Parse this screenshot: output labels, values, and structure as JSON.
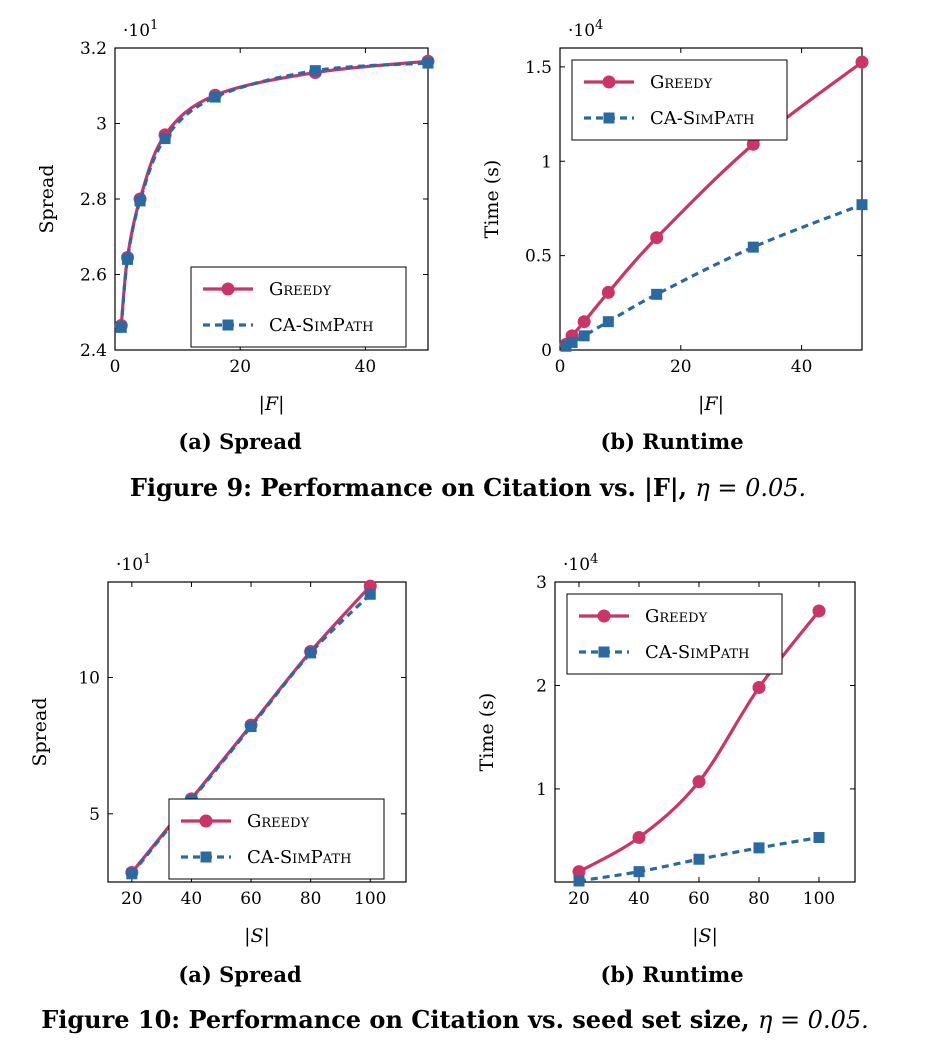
{
  "colors": {
    "greedy": "#cc3366",
    "ca_simpath": "#2a6aa3"
  },
  "legend": {
    "greedy": "Greedy",
    "ca_simpath": "CA-SimPath"
  },
  "figures": [
    {
      "caption_text": "Figure 9: Performance on Citation vs. |F|,",
      "caption_eta": "η = 0.05."
    },
    {
      "caption_text": "Figure 10: Performance on Citation vs. seed set size,",
      "caption_eta": "η = 0.05."
    }
  ],
  "chart_data": [
    {
      "type": "line",
      "subcaption": "(a) Spread",
      "xlabel": "|F|",
      "ylabel": "Spread",
      "multiplier": "·10",
      "multiplier_exp": "1",
      "xlim": [
        0,
        50
      ],
      "ylim": [
        2.4,
        3.2
      ],
      "xticks": [
        0,
        20,
        40
      ],
      "xtick_labels": [
        "0",
        "20",
        "40"
      ],
      "yticks": [
        2.4,
        2.6,
        2.8,
        3.0,
        3.2
      ],
      "ytick_labels": [
        "2.4",
        "2.6",
        "2.8",
        "3",
        "3.2"
      ],
      "legend_position": "bottom-right",
      "series": [
        {
          "name": "Greedy",
          "x": [
            1,
            2,
            4,
            8,
            16,
            32,
            50
          ],
          "y": [
            2.465,
            2.645,
            2.8,
            2.97,
            3.075,
            3.135,
            3.165
          ]
        },
        {
          "name": "CA-SimPath",
          "x": [
            1,
            2,
            4,
            8,
            16,
            32,
            50
          ],
          "y": [
            2.46,
            2.64,
            2.795,
            2.96,
            3.07,
            3.14,
            3.16
          ]
        }
      ]
    },
    {
      "type": "line",
      "subcaption": "(b) Runtime",
      "xlabel": "|F|",
      "ylabel": "Time (s)",
      "multiplier": "·10",
      "multiplier_exp": "4",
      "xlim": [
        0,
        50
      ],
      "ylim": [
        0,
        16000
      ],
      "xticks": [
        0,
        20,
        40
      ],
      "xtick_labels": [
        "0",
        "20",
        "40"
      ],
      "yticks": [
        0,
        5000,
        10000,
        15000
      ],
      "ytick_labels": [
        "0",
        "0.5",
        "1",
        "1.5"
      ],
      "legend_position": "top-left",
      "series": [
        {
          "name": "Greedy",
          "x": [
            1,
            2,
            4,
            8,
            16,
            32,
            50
          ],
          "y": [
            300,
            750,
            1500,
            3050,
            5950,
            10900,
            15250
          ]
        },
        {
          "name": "CA-SimPath",
          "x": [
            1,
            2,
            4,
            8,
            16,
            32,
            50
          ],
          "y": [
            200,
            400,
            750,
            1500,
            2950,
            5450,
            7700
          ]
        }
      ]
    },
    {
      "type": "line",
      "subcaption": "(a) Spread",
      "xlabel": "|S|",
      "ylabel": "Spread",
      "multiplier": "·10",
      "multiplier_exp": "1",
      "xlim": [
        12,
        112
      ],
      "ylim": [
        2.5,
        13.5
      ],
      "xticks": [
        20,
        40,
        60,
        80,
        100
      ],
      "xtick_labels": [
        "20",
        "40",
        "60",
        "80",
        "100"
      ],
      "yticks": [
        5,
        10
      ],
      "ytick_labels": [
        "5",
        "10"
      ],
      "legend_position": "bottom-right",
      "series": [
        {
          "name": "Greedy",
          "x": [
            20,
            40,
            60,
            80,
            100
          ],
          "y": [
            2.85,
            5.55,
            8.25,
            10.95,
            13.35
          ]
        },
        {
          "name": "CA-SimPath",
          "x": [
            20,
            40,
            60,
            80,
            100
          ],
          "y": [
            2.8,
            5.5,
            8.2,
            10.9,
            13.05
          ]
        }
      ]
    },
    {
      "type": "line",
      "subcaption": "(b) Runtime",
      "xlabel": "|S|",
      "ylabel": "Time (s)",
      "multiplier": "·10",
      "multiplier_exp": "4",
      "xlim": [
        12,
        112
      ],
      "ylim": [
        1000,
        30000
      ],
      "xticks": [
        20,
        40,
        60,
        80,
        100
      ],
      "xtick_labels": [
        "20",
        "40",
        "60",
        "80",
        "100"
      ],
      "yticks": [
        10000,
        20000,
        30000
      ],
      "ytick_labels": [
        "1",
        "2",
        "3"
      ],
      "legend_position": "top-left",
      "series": [
        {
          "name": "Greedy",
          "x": [
            20,
            40,
            60,
            80,
            100
          ],
          "y": [
            2000,
            5300,
            10700,
            19800,
            27200
          ]
        },
        {
          "name": "CA-SimPath",
          "x": [
            20,
            40,
            60,
            80,
            100
          ],
          "y": [
            1100,
            2000,
            3200,
            4300,
            5300
          ]
        }
      ]
    }
  ]
}
